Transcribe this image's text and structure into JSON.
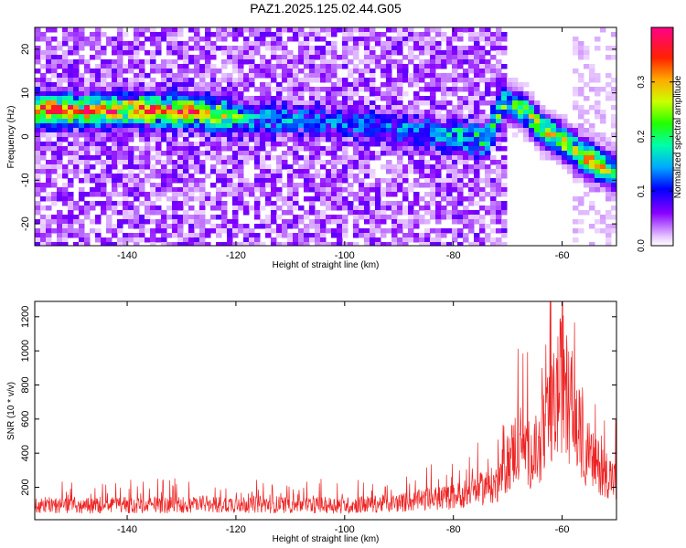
{
  "title": "PAZ1.2025.125.02.44.G05",
  "chart_data": [
    {
      "type": "heatmap",
      "xlabel": "Height of straight line (km)",
      "ylabel": "Frequency (Hz)",
      "xlim": [
        -157,
        -50
      ],
      "ylim": [
        -25,
        25
      ],
      "xticks": [
        -140,
        -120,
        -100,
        -80,
        -60
      ],
      "yticks": [
        -20,
        -10,
        0,
        10,
        20
      ],
      "colorbar": {
        "label": "Normalized spectral amplitude",
        "range": [
          0,
          0.4
        ],
        "ticks": [
          0.0,
          0.1,
          0.2,
          0.3
        ],
        "tick_labels": [
          "0.0",
          "0.1",
          "0.2",
          "0.3"
        ]
      },
      "ridge": [
        {
          "x": -130,
          "y": 6,
          "value": 0.36
        },
        {
          "x": -124,
          "y": 5,
          "value": 0.32
        },
        {
          "x": -118,
          "y": 4,
          "value": 0.18
        },
        {
          "x": -112,
          "y": 4,
          "value": 0.14
        },
        {
          "x": -100,
          "y": 3,
          "value": 0.12
        },
        {
          "x": -90,
          "y": 2,
          "value": 0.12
        },
        {
          "x": -80,
          "y": 0,
          "value": 0.16
        },
        {
          "x": -74,
          "y": -1,
          "value": 0.2
        },
        {
          "x": -71,
          "y": 8,
          "value": 0.25
        },
        {
          "x": -67,
          "y": 6,
          "value": 0.3
        },
        {
          "x": -64,
          "y": 2,
          "value": 0.32
        },
        {
          "x": -60,
          "y": -1,
          "value": 0.36
        },
        {
          "x": -57,
          "y": -4,
          "value": 0.34
        },
        {
          "x": -54,
          "y": -6,
          "value": 0.38
        },
        {
          "x": -51,
          "y": -8,
          "value": 0.3
        }
      ]
    },
    {
      "type": "line",
      "xlabel": "Height of straight line (km)",
      "ylabel": "SNR (10 * v/v)",
      "xlim": [
        -157,
        -50
      ],
      "ylim": [
        10,
        1290
      ],
      "xticks": [
        -140,
        -120,
        -100,
        -80,
        -60
      ],
      "yticks": [
        200,
        400,
        600,
        800,
        1000,
        1200
      ],
      "color": "#ee2222",
      "envelope": [
        {
          "x": -157,
          "y": 130
        },
        {
          "x": -140,
          "y": 130
        },
        {
          "x": -120,
          "y": 140
        },
        {
          "x": -100,
          "y": 130
        },
        {
          "x": -90,
          "y": 150
        },
        {
          "x": -80,
          "y": 200
        },
        {
          "x": -72,
          "y": 300
        },
        {
          "x": -68,
          "y": 650
        },
        {
          "x": -65,
          "y": 500
        },
        {
          "x": -62,
          "y": 850
        },
        {
          "x": -60,
          "y": 1150
        },
        {
          "x": -58,
          "y": 850
        },
        {
          "x": -55,
          "y": 500
        },
        {
          "x": -52,
          "y": 400
        },
        {
          "x": -50,
          "y": 320
        }
      ]
    }
  ]
}
